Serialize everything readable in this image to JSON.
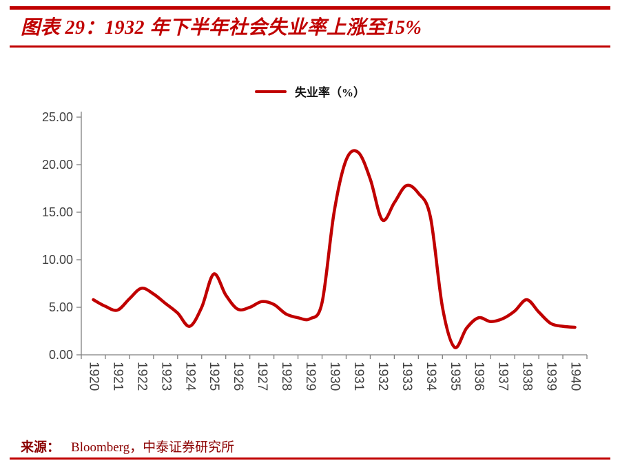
{
  "header": {
    "title": "图表 29：1932 年下半年社会失业率上涨至15%"
  },
  "legend": {
    "label": "失业率（%）"
  },
  "source": {
    "prefix": "来源：",
    "text": "Bloomberg，中泰证券研究所"
  },
  "colors": {
    "accent": "#C00000",
    "source": "#8B0000",
    "axis_line": "#7F7F7F",
    "tick_text": "#404040"
  },
  "chart_data": {
    "type": "line",
    "title": "图表 29：1932 年下半年社会失业率上涨至15%",
    "xlabel": "",
    "ylabel": "",
    "grid": false,
    "legend_position": "top",
    "ylim": [
      0,
      25
    ],
    "y_ticks": [
      0,
      5,
      10,
      15,
      20,
      25
    ],
    "y_tick_labels": [
      "0.00",
      "5.00",
      "10.00",
      "15.00",
      "20.00",
      "25.00"
    ],
    "x_tick_labels": [
      "1920",
      "1921",
      "1922",
      "1923",
      "1924",
      "1925",
      "1926",
      "1927",
      "1928",
      "1929",
      "1930",
      "1931",
      "1932",
      "1933",
      "1934",
      "1935",
      "1936",
      "1937",
      "1938",
      "1939",
      "1940"
    ],
    "series": [
      {
        "name": "失业率（%）",
        "x": [
          1920,
          1920.5,
          1921,
          1921.5,
          1922,
          1922.5,
          1923,
          1923.5,
          1924,
          1924.5,
          1925,
          1925.5,
          1926,
          1926.5,
          1927,
          1927.5,
          1928,
          1928.5,
          1929,
          1929.5,
          1930,
          1930.5,
          1931,
          1931.5,
          1932,
          1932.5,
          1933,
          1933.5,
          1934,
          1934.5,
          1935,
          1935.5,
          1936,
          1936.5,
          1937,
          1937.5,
          1938,
          1938.5,
          1939,
          1939.5,
          1940
        ],
        "values": [
          5.8,
          5.1,
          4.7,
          5.9,
          7.0,
          6.4,
          5.4,
          4.4,
          3.0,
          5.0,
          8.5,
          6.3,
          4.8,
          5.0,
          5.6,
          5.3,
          4.3,
          3.9,
          3.8,
          5.5,
          15.0,
          20.5,
          21.3,
          18.5,
          14.2,
          16.0,
          17.8,
          17.0,
          14.5,
          5.0,
          0.8,
          2.8,
          3.9,
          3.5,
          3.8,
          4.6,
          5.8,
          4.5,
          3.3,
          3.0,
          2.9
        ]
      }
    ]
  }
}
